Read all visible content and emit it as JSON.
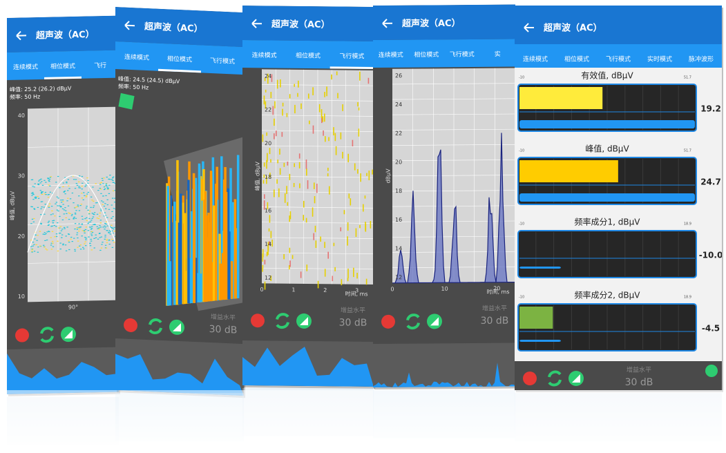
{
  "screens": [
    {
      "kind": "phase",
      "title": "超声波（AC）",
      "tabs": [
        "连续模式",
        "相位模式",
        "飞行"
      ],
      "active_tab": 1,
      "readouts": [
        "峰值: 25.2 (26.2) dBμV",
        "频率:  50 Hz"
      ],
      "y_label": "峰值, dBμV",
      "yticks": [
        "40",
        "30",
        "20",
        "10"
      ],
      "xticks": [
        "90°"
      ]
    },
    {
      "kind": "3d",
      "title": "超声波（AC）",
      "tabs": [
        "连续模式",
        "相位模式",
        "飞行模式"
      ],
      "active_tab": 1,
      "readouts": [
        "峰值: 24.5 (24.5) dBμV",
        "频率:  50 Hz"
      ],
      "gain_label": "增益水平",
      "gain_value": "30 dB"
    },
    {
      "kind": "flight",
      "title": "超声波（AC）",
      "tabs": [
        "连续模式",
        "相位模式",
        "飞行模式"
      ],
      "active_tab": 2,
      "y_label": "峰值, dBμV",
      "yticks": [
        "24",
        "22",
        "20",
        "18",
        "16",
        "14",
        "12"
      ],
      "xticks": [
        "0",
        "1",
        "2",
        "3"
      ],
      "x_label": "时间, ms",
      "gain_label": "增益水平",
      "gain_value": "30 dB"
    },
    {
      "kind": "spectrum",
      "title": "超声波（AC）",
      "tabs": [
        "连续模式",
        "相位模式",
        "飞行模式",
        "实"
      ],
      "active_tab": -1,
      "y_label": "dBμV",
      "yticks": [
        "26",
        "24",
        "22",
        "20",
        "18",
        "16",
        "14",
        "12"
      ],
      "xticks": [
        "0",
        "10",
        "20"
      ],
      "x_label": "时间, ms",
      "gain_label": "增益水平",
      "gain_value": "30 dB"
    },
    {
      "kind": "meters",
      "title": "超声波（AC）",
      "tabs": [
        "连续模式",
        "相位模式",
        "飞行模式",
        "实时模式",
        "脉冲波形"
      ],
      "active_tab": 0,
      "meters": [
        {
          "label": "有效值, dBμV",
          "min": -10,
          "max": 51.7,
          "value": 19.2,
          "color": "#ffeb3b"
        },
        {
          "label": "峰值, dBμV",
          "min": -10,
          "max": 51.7,
          "value": 24.7,
          "color": "#ffcc00"
        },
        {
          "label": "频率成分1, dBμV",
          "min": -10,
          "max": 18.9,
          "value": -10,
          "value_label": "-10.0",
          "color": "#8bc34a"
        },
        {
          "label": "频率成分2, dBμV",
          "min": -10,
          "max": 18.9,
          "value": -4.5,
          "color": "#7cb342"
        }
      ],
      "gain_label": "增益水平",
      "gain_value": "30 dB"
    }
  ]
}
